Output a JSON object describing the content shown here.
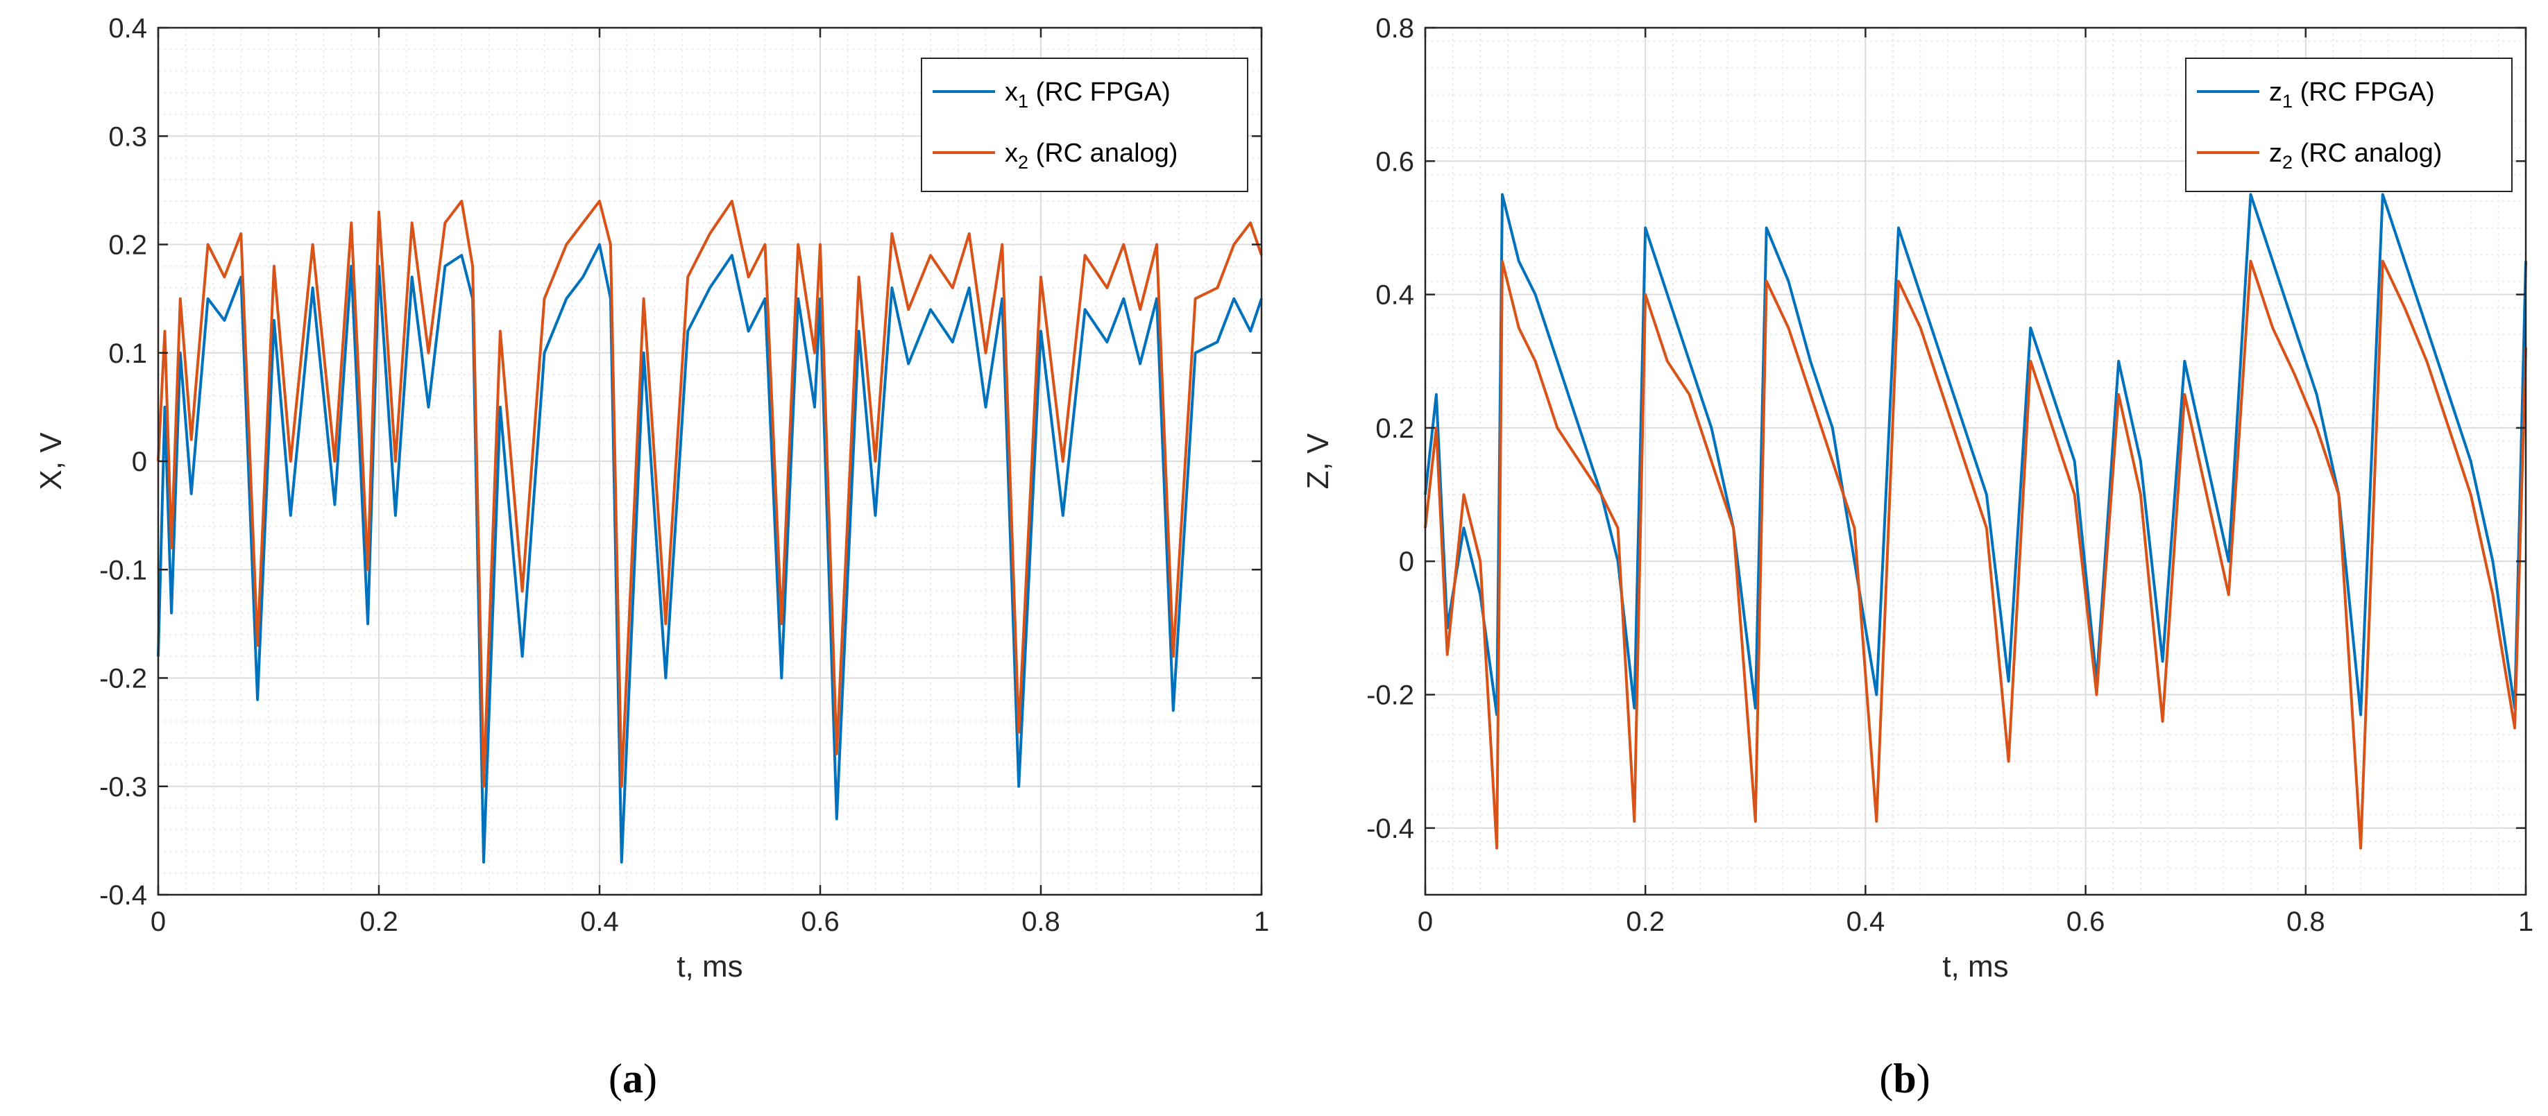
{
  "chart_data": [
    {
      "type": "line",
      "panel": "a",
      "caption_letter": "a",
      "xlabel": "t, ms",
      "ylabel": "X, V",
      "xlim": [
        0,
        1
      ],
      "ylim": [
        -0.4,
        0.4
      ],
      "xticks": [
        "0",
        "0.2",
        "0.4",
        "0.6",
        "0.8",
        "1"
      ],
      "xtick_values": [
        0,
        0.2,
        0.4,
        0.6,
        0.8,
        1
      ],
      "yticks": [
        "-0.4",
        "-0.3",
        "-0.2",
        "-0.1",
        "0",
        "0.1",
        "0.2",
        "0.3",
        "0.4"
      ],
      "ytick_values": [
        -0.4,
        -0.3,
        -0.2,
        -0.1,
        0,
        0.1,
        0.2,
        0.3,
        0.4
      ],
      "grid": true,
      "legend_position": "top-right",
      "series": [
        {
          "name": "x1 (RC FPGA)",
          "sym": "x",
          "sub": "1",
          "rest": " (RC FPGA)",
          "color": "#0072BD",
          "x": [
            0,
            0.006,
            0.012,
            0.02,
            0.03,
            0.045,
            0.06,
            0.075,
            0.09,
            0.105,
            0.12,
            0.14,
            0.16,
            0.175,
            0.19,
            0.2,
            0.215,
            0.23,
            0.245,
            0.26,
            0.275,
            0.285,
            0.295,
            0.31,
            0.33,
            0.35,
            0.37,
            0.385,
            0.4,
            0.41,
            0.42,
            0.44,
            0.46,
            0.48,
            0.5,
            0.52,
            0.535,
            0.55,
            0.565,
            0.58,
            0.595,
            0.6,
            0.615,
            0.635,
            0.65,
            0.665,
            0.68,
            0.7,
            0.72,
            0.735,
            0.75,
            0.765,
            0.78,
            0.8,
            0.82,
            0.84,
            0.86,
            0.875,
            0.89,
            0.905,
            0.92,
            0.94,
            0.96,
            0.975,
            0.99,
            1
          ],
          "y": [
            -0.18,
            0.05,
            -0.14,
            0.1,
            -0.03,
            0.15,
            0.13,
            0.17,
            -0.22,
            0.13,
            -0.05,
            0.16,
            -0.04,
            0.18,
            -0.15,
            0.18,
            -0.05,
            0.17,
            0.05,
            0.18,
            0.19,
            0.15,
            -0.37,
            0.05,
            -0.18,
            0.1,
            0.15,
            0.17,
            0.2,
            0.15,
            -0.37,
            0.1,
            -0.2,
            0.12,
            0.16,
            0.19,
            0.12,
            0.15,
            -0.2,
            0.15,
            0.05,
            0.15,
            -0.33,
            0.12,
            -0.05,
            0.16,
            0.09,
            0.14,
            0.11,
            0.16,
            0.05,
            0.15,
            -0.3,
            0.12,
            -0.05,
            0.14,
            0.11,
            0.15,
            0.09,
            0.15,
            -0.23,
            0.1,
            0.11,
            0.15,
            0.12,
            0.15
          ]
        },
        {
          "name": "x2 (RC analog)",
          "sym": "x",
          "sub": "2",
          "rest": " (RC analog)",
          "color": "#D95319",
          "x": [
            0,
            0.006,
            0.012,
            0.02,
            0.03,
            0.045,
            0.06,
            0.075,
            0.09,
            0.105,
            0.12,
            0.14,
            0.16,
            0.175,
            0.19,
            0.2,
            0.215,
            0.23,
            0.245,
            0.26,
            0.275,
            0.285,
            0.295,
            0.31,
            0.33,
            0.35,
            0.37,
            0.385,
            0.4,
            0.41,
            0.42,
            0.44,
            0.46,
            0.48,
            0.5,
            0.52,
            0.535,
            0.55,
            0.565,
            0.58,
            0.595,
            0.6,
            0.615,
            0.635,
            0.65,
            0.665,
            0.68,
            0.7,
            0.72,
            0.735,
            0.75,
            0.765,
            0.78,
            0.8,
            0.82,
            0.84,
            0.86,
            0.875,
            0.89,
            0.905,
            0.92,
            0.94,
            0.96,
            0.975,
            0.99,
            1
          ],
          "y": [
            0.0,
            0.12,
            -0.08,
            0.15,
            0.02,
            0.2,
            0.17,
            0.21,
            -0.17,
            0.18,
            0.0,
            0.2,
            0.0,
            0.22,
            -0.1,
            0.23,
            0.0,
            0.22,
            0.1,
            0.22,
            0.24,
            0.18,
            -0.3,
            0.12,
            -0.12,
            0.15,
            0.2,
            0.22,
            0.24,
            0.2,
            -0.3,
            0.15,
            -0.15,
            0.17,
            0.21,
            0.24,
            0.17,
            0.2,
            -0.15,
            0.2,
            0.1,
            0.2,
            -0.27,
            0.17,
            0.0,
            0.21,
            0.14,
            0.19,
            0.16,
            0.21,
            0.1,
            0.2,
            -0.25,
            0.17,
            0.0,
            0.19,
            0.16,
            0.2,
            0.14,
            0.2,
            -0.18,
            0.15,
            0.16,
            0.2,
            0.22,
            0.19
          ]
        }
      ]
    },
    {
      "type": "line",
      "panel": "b",
      "caption_letter": "b",
      "xlabel": "t, ms",
      "ylabel": "Z, V",
      "xlim": [
        0,
        1
      ],
      "ylim": [
        -0.5,
        0.8
      ],
      "xticks": [
        "0",
        "0.2",
        "0.4",
        "0.6",
        "0.8",
        "1"
      ],
      "xtick_values": [
        0,
        0.2,
        0.4,
        0.6,
        0.8,
        1
      ],
      "yticks": [
        "-0.4",
        "-0.2",
        "0",
        "0.2",
        "0.4",
        "0.6",
        "0.8"
      ],
      "ytick_values": [
        -0.4,
        -0.2,
        0,
        0.2,
        0.4,
        0.6,
        0.8
      ],
      "grid": true,
      "legend_position": "top-right",
      "series": [
        {
          "name": "z1 (RC FPGA)",
          "sym": "z",
          "sub": "1",
          "rest": " (RC FPGA)",
          "color": "#0072BD",
          "x": [
            0,
            0.01,
            0.02,
            0.035,
            0.05,
            0.065,
            0.07,
            0.085,
            0.1,
            0.12,
            0.14,
            0.16,
            0.175,
            0.19,
            0.2,
            0.22,
            0.24,
            0.26,
            0.28,
            0.3,
            0.31,
            0.33,
            0.35,
            0.37,
            0.39,
            0.41,
            0.43,
            0.45,
            0.47,
            0.49,
            0.51,
            0.53,
            0.55,
            0.57,
            0.59,
            0.61,
            0.63,
            0.65,
            0.67,
            0.69,
            0.71,
            0.73,
            0.75,
            0.77,
            0.79,
            0.81,
            0.83,
            0.85,
            0.87,
            0.89,
            0.91,
            0.93,
            0.95,
            0.97,
            0.99,
            1
          ],
          "y": [
            0.1,
            0.25,
            -0.1,
            0.05,
            -0.05,
            -0.23,
            0.55,
            0.45,
            0.4,
            0.3,
            0.2,
            0.1,
            0.0,
            -0.22,
            0.5,
            0.4,
            0.3,
            0.2,
            0.05,
            -0.22,
            0.5,
            0.42,
            0.3,
            0.2,
            0.0,
            -0.2,
            0.5,
            0.4,
            0.3,
            0.2,
            0.1,
            -0.18,
            0.35,
            0.25,
            0.15,
            -0.18,
            0.3,
            0.15,
            -0.15,
            0.3,
            0.15,
            0.0,
            0.55,
            0.45,
            0.35,
            0.25,
            0.1,
            -0.23,
            0.55,
            0.45,
            0.35,
            0.25,
            0.15,
            0.0,
            -0.22,
            0.45
          ]
        },
        {
          "name": "z2 (RC analog)",
          "sym": "z",
          "sub": "2",
          "rest": " (RC analog)",
          "color": "#D95319",
          "x": [
            0,
            0.01,
            0.02,
            0.035,
            0.05,
            0.065,
            0.07,
            0.085,
            0.1,
            0.12,
            0.14,
            0.16,
            0.175,
            0.19,
            0.2,
            0.22,
            0.24,
            0.26,
            0.28,
            0.3,
            0.31,
            0.33,
            0.35,
            0.37,
            0.39,
            0.41,
            0.43,
            0.45,
            0.47,
            0.49,
            0.51,
            0.53,
            0.55,
            0.57,
            0.59,
            0.61,
            0.63,
            0.65,
            0.67,
            0.69,
            0.71,
            0.73,
            0.75,
            0.77,
            0.79,
            0.81,
            0.83,
            0.85,
            0.87,
            0.89,
            0.91,
            0.93,
            0.95,
            0.97,
            0.99,
            1
          ],
          "y": [
            0.05,
            0.2,
            -0.14,
            0.1,
            0.0,
            -0.43,
            0.45,
            0.35,
            0.3,
            0.2,
            0.15,
            0.1,
            0.05,
            -0.39,
            0.4,
            0.3,
            0.25,
            0.15,
            0.05,
            -0.39,
            0.42,
            0.35,
            0.25,
            0.15,
            0.05,
            -0.39,
            0.42,
            0.35,
            0.25,
            0.15,
            0.05,
            -0.3,
            0.3,
            0.2,
            0.1,
            -0.2,
            0.25,
            0.1,
            -0.24,
            0.25,
            0.1,
            -0.05,
            0.45,
            0.35,
            0.28,
            0.2,
            0.1,
            -0.43,
            0.45,
            0.38,
            0.3,
            0.2,
            0.1,
            -0.05,
            -0.25,
            0.32
          ]
        }
      ]
    }
  ]
}
